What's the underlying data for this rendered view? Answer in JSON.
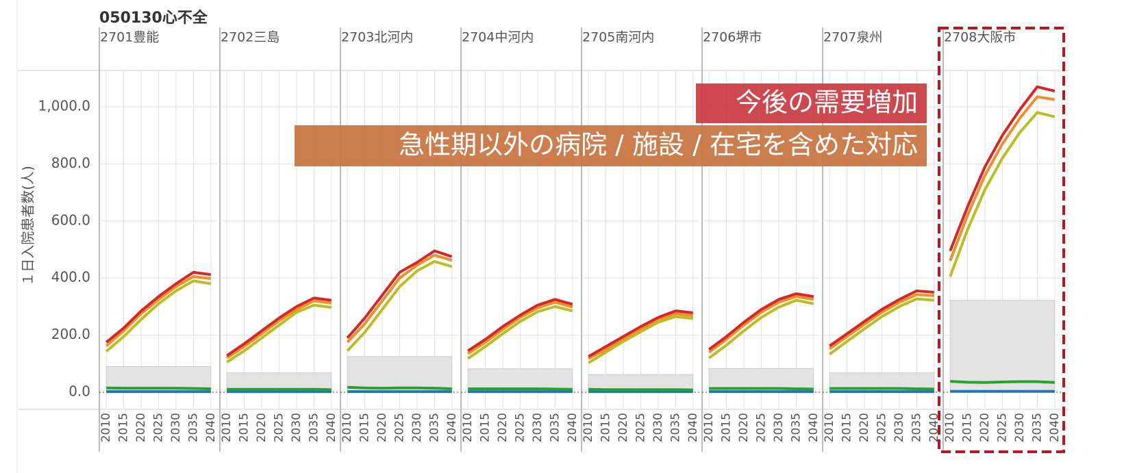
{
  "title": "050130心不全",
  "y_label": "１日入院患者数(人)",
  "annotations": [
    "今後の需要増加",
    "急性期以外の病院 / 施設 / 在宅を含めた対応"
  ],
  "chart_data": [
    {
      "type": "line",
      "title": "2701豊能",
      "x": [
        2010,
        2015,
        2020,
        2025,
        2030,
        2035,
        2040
      ],
      "xlim": [
        2008,
        2042
      ],
      "xticks": [
        2010,
        2015,
        2020,
        2025,
        2030,
        2035,
        2040
      ],
      "ylim": [
        -60,
        1127
      ],
      "yticks": [
        {
          "value": 0,
          "label": "0.0"
        },
        {
          "value": 200,
          "label": "200.0"
        },
        {
          "value": 400,
          "label": "400.0"
        },
        {
          "value": 600,
          "label": "600.0"
        },
        {
          "value": 800,
          "label": "800.0"
        },
        {
          "value": 1000,
          "label": "1,000.0"
        }
      ],
      "band": 90,
      "series": [
        {
          "color": "#d62728",
          "values": [
            175,
            225,
            285,
            335,
            380,
            420,
            412
          ]
        },
        {
          "color": "#f28e2b",
          "values": [
            162,
            215,
            275,
            325,
            370,
            405,
            398
          ]
        },
        {
          "color": "#bcbd22",
          "values": [
            143,
            195,
            255,
            310,
            355,
            390,
            380
          ]
        },
        {
          "color": "#2ca02c",
          "values": [
            15,
            14,
            14,
            14,
            14,
            13,
            12
          ]
        },
        {
          "color": "#1f77b4",
          "values": [
            2,
            2,
            2,
            2,
            2,
            2,
            2
          ]
        }
      ]
    },
    {
      "type": "line",
      "title": "2702三島",
      "x": [
        2010,
        2015,
        2020,
        2025,
        2030,
        2035,
        2040
      ],
      "xlim": [
        2008,
        2042
      ],
      "xticks": [
        2010,
        2015,
        2020,
        2025,
        2030,
        2035,
        2040
      ],
      "ylim": [
        -60,
        1127
      ],
      "yticks": [
        0,
        200,
        400,
        600,
        800,
        1000
      ],
      "band": 68,
      "series": [
        {
          "color": "#d62728",
          "values": [
            128,
            170,
            215,
            260,
            300,
            330,
            322
          ]
        },
        {
          "color": "#f28e2b",
          "values": [
            120,
            160,
            205,
            250,
            290,
            320,
            312
          ]
        },
        {
          "color": "#bcbd22",
          "values": [
            105,
            145,
            190,
            235,
            280,
            305,
            297
          ]
        },
        {
          "color": "#2ca02c",
          "values": [
            10,
            10,
            10,
            10,
            10,
            10,
            9
          ]
        },
        {
          "color": "#1f77b4",
          "values": [
            2,
            2,
            2,
            2,
            2,
            2,
            2
          ]
        }
      ]
    },
    {
      "type": "line",
      "title": "2703北河内",
      "x": [
        2010,
        2015,
        2020,
        2025,
        2030,
        2035,
        2040
      ],
      "xlim": [
        2008,
        2042
      ],
      "xticks": [
        2010,
        2015,
        2020,
        2025,
        2030,
        2035,
        2040
      ],
      "ylim": [
        -60,
        1127
      ],
      "yticks": [
        0,
        200,
        400,
        600,
        800,
        1000
      ],
      "band": 125,
      "series": [
        {
          "color": "#d62728",
          "values": [
            190,
            260,
            340,
            420,
            455,
            495,
            475
          ]
        },
        {
          "color": "#f28e2b",
          "values": [
            175,
            240,
            320,
            400,
            445,
            480,
            462
          ]
        },
        {
          "color": "#bcbd22",
          "values": [
            145,
            210,
            290,
            370,
            425,
            458,
            440
          ]
        },
        {
          "color": "#2ca02c",
          "values": [
            17,
            15,
            14,
            15,
            15,
            14,
            12
          ]
        },
        {
          "color": "#1f77b4",
          "values": [
            2,
            2,
            2,
            2,
            2,
            2,
            2
          ]
        }
      ]
    },
    {
      "type": "line",
      "title": "2704中河内",
      "x": [
        2010,
        2015,
        2020,
        2025,
        2030,
        2035,
        2040
      ],
      "xlim": [
        2008,
        2042
      ],
      "xticks": [
        2010,
        2015,
        2020,
        2025,
        2030,
        2035,
        2040
      ],
      "ylim": [
        -60,
        1127
      ],
      "yticks": [
        0,
        200,
        400,
        600,
        800,
        1000
      ],
      "band": 82,
      "series": [
        {
          "color": "#d62728",
          "values": [
            145,
            185,
            230,
            270,
            305,
            325,
            308
          ]
        },
        {
          "color": "#f28e2b",
          "values": [
            135,
            175,
            220,
            262,
            295,
            315,
            298
          ]
        },
        {
          "color": "#bcbd22",
          "values": [
            118,
            160,
            205,
            248,
            282,
            300,
            285
          ]
        },
        {
          "color": "#2ca02c",
          "values": [
            12,
            12,
            12,
            12,
            12,
            11,
            10
          ]
        },
        {
          "color": "#1f77b4",
          "values": [
            2,
            2,
            2,
            2,
            2,
            2,
            2
          ]
        }
      ]
    },
    {
      "type": "line",
      "title": "2705南河内",
      "x": [
        2010,
        2015,
        2020,
        2025,
        2030,
        2035,
        2040
      ],
      "xlim": [
        2008,
        2042
      ],
      "xticks": [
        2010,
        2015,
        2020,
        2025,
        2030,
        2035,
        2040
      ],
      "ylim": [
        -60,
        1127
      ],
      "yticks": [
        0,
        200,
        400,
        600,
        800,
        1000
      ],
      "band": 62,
      "series": [
        {
          "color": "#d62728",
          "values": [
            125,
            160,
            195,
            230,
            262,
            285,
            278
          ]
        },
        {
          "color": "#f28e2b",
          "values": [
            118,
            150,
            188,
            222,
            255,
            275,
            268
          ]
        },
        {
          "color": "#bcbd22",
          "values": [
            103,
            140,
            178,
            212,
            245,
            265,
            258
          ]
        },
        {
          "color": "#2ca02c",
          "values": [
            10,
            9,
            9,
            9,
            9,
            9,
            8
          ]
        },
        {
          "color": "#1f77b4",
          "values": [
            2,
            2,
            2,
            2,
            2,
            2,
            2
          ]
        }
      ]
    },
    {
      "type": "line",
      "title": "2706堺市",
      "x": [
        2010,
        2015,
        2020,
        2025,
        2030,
        2035,
        2040
      ],
      "xlim": [
        2008,
        2042
      ],
      "xticks": [
        2010,
        2015,
        2020,
        2025,
        2030,
        2035,
        2040
      ],
      "ylim": [
        -60,
        1127
      ],
      "yticks": [
        0,
        200,
        400,
        600,
        800,
        1000
      ],
      "band": 83,
      "series": [
        {
          "color": "#d62728",
          "values": [
            150,
            195,
            245,
            290,
            325,
            345,
            335
          ]
        },
        {
          "color": "#f28e2b",
          "values": [
            140,
            185,
            235,
            280,
            315,
            335,
            325
          ]
        },
        {
          "color": "#bcbd22",
          "values": [
            120,
            165,
            215,
            262,
            298,
            322,
            310
          ]
        },
        {
          "color": "#2ca02c",
          "values": [
            13,
            13,
            13,
            13,
            13,
            12,
            11
          ]
        },
        {
          "color": "#1f77b4",
          "values": [
            2,
            2,
            2,
            2,
            2,
            2,
            2
          ]
        }
      ]
    },
    {
      "type": "line",
      "title": "2707泉州",
      "x": [
        2010,
        2015,
        2020,
        2025,
        2030,
        2035,
        2040
      ],
      "xlim": [
        2008,
        2042
      ],
      "xticks": [
        2010,
        2015,
        2020,
        2025,
        2030,
        2035,
        2040
      ],
      "ylim": [
        -60,
        1127
      ],
      "yticks": [
        0,
        200,
        400,
        600,
        800,
        1000
      ],
      "band": 68,
      "series": [
        {
          "color": "#d62728",
          "values": [
            162,
            205,
            248,
            290,
            325,
            355,
            350
          ]
        },
        {
          "color": "#f28e2b",
          "values": [
            152,
            195,
            238,
            280,
            315,
            342,
            338
          ]
        },
        {
          "color": "#bcbd22",
          "values": [
            133,
            178,
            222,
            265,
            300,
            327,
            322
          ]
        },
        {
          "color": "#2ca02c",
          "values": [
            13,
            13,
            13,
            13,
            13,
            12,
            11
          ]
        },
        {
          "color": "#1f77b4",
          "values": [
            2,
            2,
            2,
            2,
            2,
            2,
            2
          ]
        }
      ]
    },
    {
      "type": "line",
      "title": "2708大阪市",
      "x": [
        2010,
        2015,
        2020,
        2025,
        2030,
        2035,
        2040
      ],
      "xlim": [
        2008,
        2042
      ],
      "xticks": [
        2010,
        2015,
        2020,
        2025,
        2030,
        2035,
        2040
      ],
      "ylim": [
        -60,
        1127
      ],
      "yticks": [
        0,
        200,
        400,
        600,
        800,
        1000
      ],
      "band": 322,
      "series": [
        {
          "color": "#d62728",
          "values": [
            495,
            650,
            790,
            900,
            990,
            1070,
            1055
          ]
        },
        {
          "color": "#f28e2b",
          "values": [
            460,
            620,
            760,
            870,
            960,
            1035,
            1025
          ]
        },
        {
          "color": "#bcbd22",
          "values": [
            405,
            570,
            710,
            820,
            910,
            980,
            965
          ]
        },
        {
          "color": "#2ca02c",
          "values": [
            38,
            35,
            34,
            36,
            37,
            37,
            34
          ]
        },
        {
          "color": "#1f77b4",
          "values": [
            3,
            3,
            3,
            3,
            3,
            3,
            3
          ]
        }
      ]
    }
  ]
}
